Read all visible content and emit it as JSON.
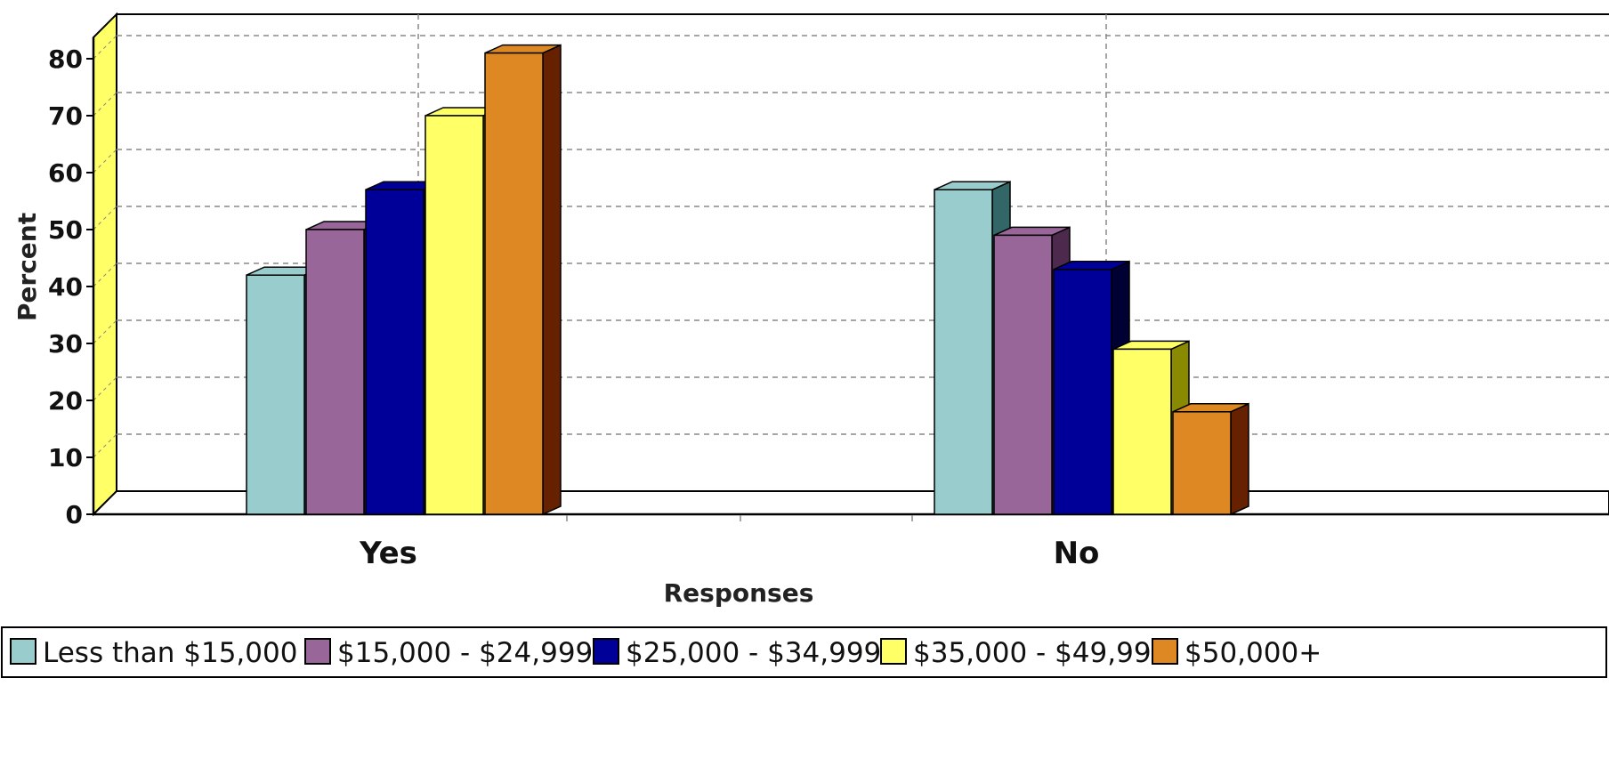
{
  "chart_data": {
    "type": "bar",
    "title": "",
    "xlabel": "Responses",
    "ylabel": "Percent",
    "categories": [
      "Yes",
      "No"
    ],
    "ylim": [
      0,
      85
    ],
    "yticks": [
      0,
      10,
      20,
      30,
      40,
      50,
      60,
      70,
      80
    ],
    "grid": true,
    "three_d": true,
    "legend_position": "bottom",
    "series": [
      {
        "name": "Less than $15,000",
        "values": [
          42,
          57
        ],
        "color": "#99cccc",
        "side_color": "#336666"
      },
      {
        "name": "$15,000 - $24,999",
        "values": [
          50,
          49
        ],
        "color": "#996699",
        "side_color": "#4d2a4d"
      },
      {
        "name": "$25,000 - $34,999",
        "values": [
          57,
          43
        ],
        "color": "#000099",
        "side_color": "#000033"
      },
      {
        "name": "$35,000 - $49,999",
        "values": [
          70,
          29
        ],
        "color": "#ffff66",
        "side_color": "#8a8a00"
      },
      {
        "name": "$50,000+",
        "values": [
          81,
          18
        ],
        "color": "#dd8822",
        "side_color": "#662200"
      }
    ]
  }
}
